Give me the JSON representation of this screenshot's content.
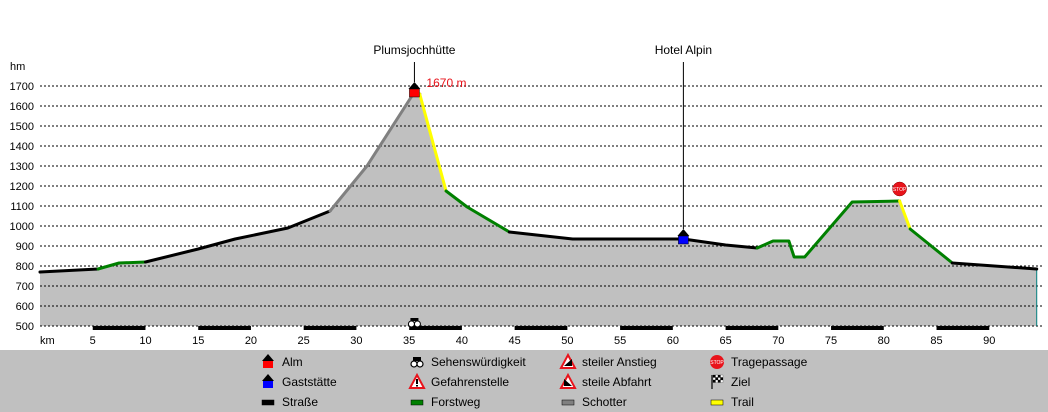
{
  "chart_data": {
    "type": "area",
    "title": "",
    "xlabel": "km",
    "ylabel": "hm",
    "xlim": [
      0,
      95
    ],
    "ylim": [
      500,
      1700
    ],
    "x_ticks": [
      5,
      10,
      15,
      20,
      25,
      30,
      35,
      40,
      45,
      50,
      55,
      60,
      65,
      70,
      75,
      80,
      85,
      90
    ],
    "y_ticks": [
      500,
      600,
      700,
      800,
      900,
      1000,
      1100,
      1200,
      1300,
      1400,
      1500,
      1600,
      1700
    ],
    "profile": [
      {
        "km": 0,
        "elev": 770
      },
      {
        "km": 5.5,
        "elev": 785
      },
      {
        "km": 7.5,
        "elev": 815
      },
      {
        "km": 10,
        "elev": 820
      },
      {
        "km": 15,
        "elev": 885
      },
      {
        "km": 18.5,
        "elev": 935
      },
      {
        "km": 23.5,
        "elev": 990
      },
      {
        "km": 27.5,
        "elev": 1075
      },
      {
        "km": 31,
        "elev": 1300
      },
      {
        "km": 35.5,
        "elev": 1670
      },
      {
        "km": 36,
        "elev": 1660
      },
      {
        "km": 38.5,
        "elev": 1175
      },
      {
        "km": 40.5,
        "elev": 1095
      },
      {
        "km": 44.5,
        "elev": 970
      },
      {
        "km": 50.5,
        "elev": 935
      },
      {
        "km": 61,
        "elev": 935
      },
      {
        "km": 65,
        "elev": 905
      },
      {
        "km": 68,
        "elev": 890
      },
      {
        "km": 69.5,
        "elev": 925
      },
      {
        "km": 71,
        "elev": 925
      },
      {
        "km": 71.5,
        "elev": 845
      },
      {
        "km": 72.5,
        "elev": 845
      },
      {
        "km": 77,
        "elev": 1120
      },
      {
        "km": 81.5,
        "elev": 1125
      },
      {
        "km": 82.5,
        "elev": 985
      },
      {
        "km": 86.5,
        "elev": 815
      },
      {
        "km": 94.5,
        "elev": 785
      }
    ],
    "surface_segments": [
      {
        "type": "street",
        "from": 0,
        "to": 5.5
      },
      {
        "type": "forest",
        "from": 5.5,
        "to": 10
      },
      {
        "type": "street",
        "from": 10,
        "to": 27.5
      },
      {
        "type": "gravel",
        "from": 27.5,
        "to": 35.5
      },
      {
        "type": "street",
        "from": 35.5,
        "to": 36
      },
      {
        "type": "trail",
        "from": 36,
        "to": 38.5
      },
      {
        "type": "forest",
        "from": 38.5,
        "to": 44.5
      },
      {
        "type": "street",
        "from": 44.5,
        "to": 68
      },
      {
        "type": "forest",
        "from": 68,
        "to": 81.5
      },
      {
        "type": "trail",
        "from": 81.5,
        "to": 82.5
      },
      {
        "type": "forest",
        "from": 82.5,
        "to": 86.5
      },
      {
        "type": "street",
        "from": 86.5,
        "to": 94.5
      }
    ],
    "points_of_interest": [
      {
        "name": "Plumsjochhütte",
        "km": 35.5,
        "elev": 1670,
        "kind": "alm",
        "peak_label": "1670 m"
      },
      {
        "name": "Hotel Alpin",
        "km": 61,
        "elev": 935,
        "kind": "gaststaette"
      }
    ],
    "stop_marker": {
      "km": 81.5,
      "elev": 1125
    },
    "sight_marker": {
      "km": 35.5
    },
    "colors": {
      "fill": "#c0c0c0",
      "street": "#000000",
      "forest": "#008000",
      "gravel": "#808080",
      "trail": "#ffff00",
      "alm": "#ff0000",
      "gaststaette": "#0000ff",
      "stop": "#e8131b",
      "grid": "#000000",
      "legend_bg": "#c0c0c0"
    },
    "legend": [
      {
        "key": "alm",
        "label": "Alm",
        "icon": "alm-icon"
      },
      {
        "key": "gaststaette",
        "label": "Gaststätte",
        "icon": "gaststaette-icon"
      },
      {
        "key": "street",
        "label": "Straße",
        "icon": "street-swatch"
      },
      {
        "key": "sight",
        "label": "Sehenswürdigkeit",
        "icon": "binoculars-icon"
      },
      {
        "key": "danger",
        "label": "Gefahrenstelle",
        "icon": "warning-icon"
      },
      {
        "key": "forest",
        "label": "Forstweg",
        "icon": "forest-swatch"
      },
      {
        "key": "steep_up",
        "label": "steiler Anstieg",
        "icon": "steep-ascent-icon"
      },
      {
        "key": "steep_down",
        "label": "steile Abfahrt",
        "icon": "steep-descent-icon"
      },
      {
        "key": "gravel",
        "label": "Schotter",
        "icon": "gravel-swatch"
      },
      {
        "key": "carry",
        "label": "Tragepassage",
        "icon": "stop-icon"
      },
      {
        "key": "finish",
        "label": "Ziel",
        "icon": "finish-flag-icon"
      },
      {
        "key": "trail",
        "label": "Trail",
        "icon": "trail-swatch"
      }
    ]
  }
}
